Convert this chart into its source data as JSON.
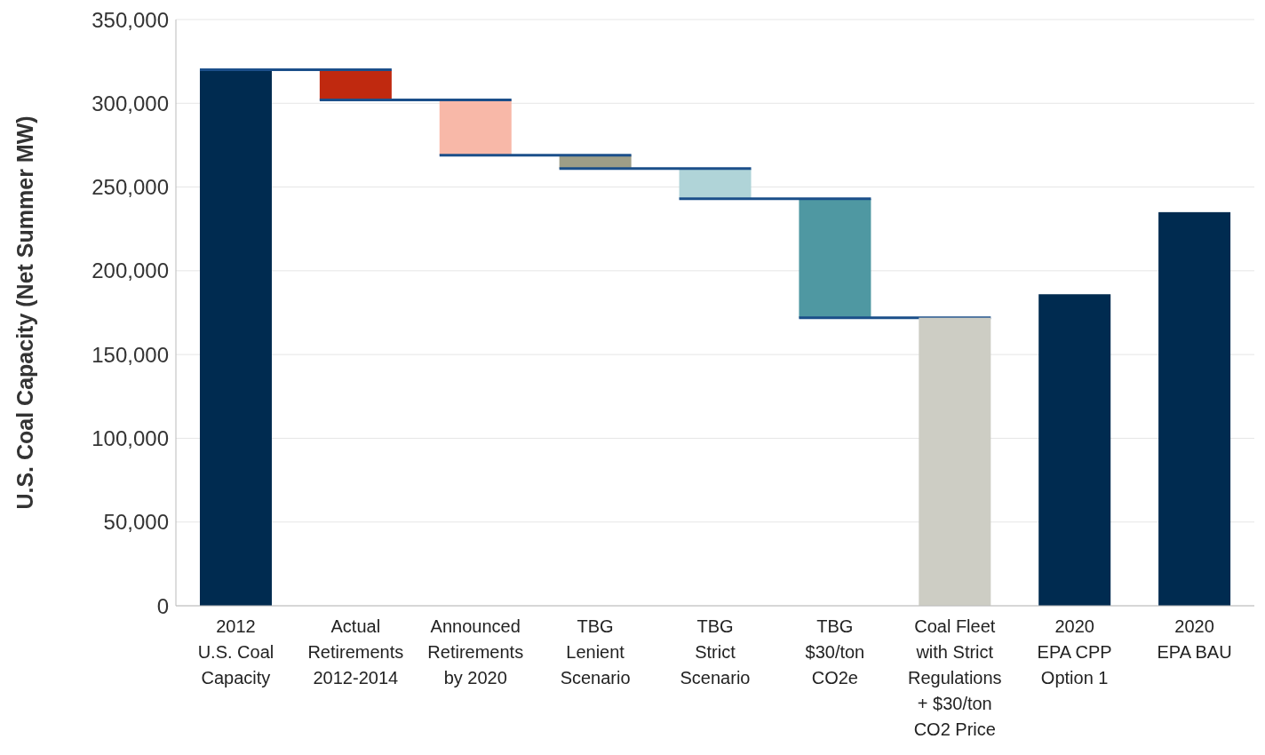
{
  "chart_data": {
    "type": "bar",
    "ylabel": "U.S. Coal Capacity (Net Summer MW)",
    "categories": [
      "2012\nU.S. Coal\nCapacity",
      "Actual\nRetirements\n2012-2014",
      "Announced\nRetirements\nby 2020",
      "TBG\nLenient\nScenario",
      "TBG\nStrict\nScenario",
      "TBG\n$30/ton\nCO2e",
      "Coal Fleet\nwith Strict\nRegulations\n+ $30/ton\nCO2 Price",
      "2020\nEPA CPP\nOption 1",
      "2020\nEPA BAU"
    ],
    "values": [
      320000,
      18000,
      33000,
      8000,
      18000,
      71000,
      172000,
      186000,
      235000
    ],
    "base": [
      0,
      302000,
      269000,
      261000,
      243000,
      172000,
      0,
      0,
      0
    ],
    "colors": [
      "#002b50",
      "#c0290f",
      "#f8b8a8",
      "#9e9e87",
      "#b0d4d8",
      "#4f98a2",
      "#cdcdc4",
      "#002b50",
      "#002b50"
    ],
    "ylim": [
      0,
      350000
    ],
    "yticks": [
      0,
      {
        "value": 50000,
        "label": "50,000"
      },
      {
        "value": 100000,
        "label": "100,000"
      },
      {
        "value": 150000,
        "label": "150,000"
      },
      {
        "value": 200000,
        "label": "200,000"
      },
      {
        "value": 250000,
        "label": "250,000"
      },
      {
        "value": 300000,
        "label": "300,000"
      },
      {
        "value": 350000,
        "label": "350,000"
      }
    ],
    "grid": "y"
  }
}
